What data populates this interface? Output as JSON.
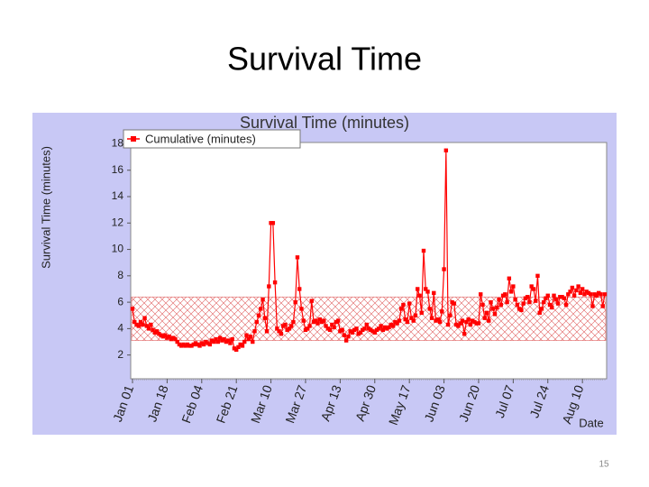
{
  "slide": {
    "title": "Survival Time",
    "page_number": "15"
  },
  "chart_data": {
    "type": "line",
    "title": "Survival Time (minutes)",
    "y_label": "Survival Time (minutes)",
    "x_label": "Date",
    "legend": "upper left",
    "band": {
      "low": 3.1,
      "high": 6.4,
      "color": "#e06060"
    },
    "ylim": [
      0.2,
      18.1
    ],
    "yticks": [
      2,
      4,
      6,
      8,
      10,
      12,
      14,
      16,
      18
    ],
    "categories": [
      "Jan 01",
      null,
      null,
      null,
      null,
      null,
      null,
      null,
      null,
      null,
      null,
      null,
      null,
      null,
      null,
      null,
      null,
      "Jan 18",
      null,
      null,
      null,
      null,
      null,
      null,
      null,
      null,
      null,
      null,
      null,
      null,
      null,
      null,
      null,
      null,
      "Feb 04",
      null,
      null,
      null,
      null,
      null,
      null,
      null,
      null,
      null,
      null,
      null,
      null,
      null,
      null,
      null,
      null,
      "Feb 21",
      null,
      null,
      null,
      null,
      null,
      null,
      null,
      null,
      null,
      null,
      null,
      null,
      null,
      null,
      null,
      null,
      "Mar 10",
      null,
      null,
      null,
      null,
      null,
      null,
      null,
      null,
      null,
      null,
      null,
      null,
      null,
      null,
      null,
      null,
      "Mar 27",
      null,
      null,
      null,
      null,
      null,
      null,
      null,
      null,
      null,
      null,
      null,
      null,
      null,
      null,
      null,
      null,
      "Apr 13",
      null,
      null,
      null,
      null,
      null,
      null,
      null,
      null,
      null,
      null,
      null,
      null,
      null,
      null,
      null,
      null,
      "Apr 30",
      null,
      null,
      null,
      null,
      null,
      null,
      null,
      null,
      null,
      null,
      null,
      null,
      null,
      null,
      null,
      null,
      "May 17",
      null,
      null,
      null,
      null,
      null,
      null,
      null,
      null,
      null,
      null,
      null,
      null,
      null,
      null,
      null,
      null,
      "Jun 03",
      null,
      null,
      null,
      null,
      null,
      null,
      null,
      null,
      null,
      null,
      null,
      null,
      null,
      null,
      null,
      null,
      "Jun 20",
      null,
      null,
      null,
      null,
      null,
      null,
      null,
      null,
      null,
      null,
      null,
      null,
      null,
      null,
      null,
      null,
      "Jul 07",
      null,
      null,
      null,
      null,
      null,
      null,
      null,
      null,
      null,
      null,
      null,
      null,
      null,
      null,
      null,
      null,
      "Jul 24",
      null,
      null,
      null,
      null,
      null,
      null,
      null,
      null,
      null,
      null,
      null,
      null,
      null,
      null,
      null,
      null,
      "Aug 10",
      null,
      null,
      null,
      null,
      null,
      null,
      null,
      null,
      null,
      null,
      null
    ],
    "series": [
      {
        "name": "Cumulative (minutes)",
        "color": "#ff0000",
        "values": [
          5.5,
          4.5,
          4.3,
          4.2,
          4.5,
          4.3,
          4.8,
          4.2,
          4.0,
          4.3,
          3.9,
          3.7,
          3.8,
          3.6,
          3.5,
          3.4,
          3.5,
          3.3,
          3.4,
          3.2,
          3.3,
          3.2,
          3.0,
          2.8,
          2.7,
          2.8,
          2.7,
          2.8,
          2.7,
          2.7,
          2.8,
          2.9,
          2.8,
          2.7,
          2.9,
          2.8,
          3.0,
          2.9,
          2.8,
          3.1,
          3.0,
          3.2,
          3.0,
          3.3,
          3.1,
          3.2,
          3.0,
          3.1,
          2.9,
          3.2,
          2.5,
          2.4,
          2.6,
          2.8,
          2.7,
          3.0,
          3.5,
          3.2,
          3.4,
          3.0,
          3.8,
          4.5,
          5.0,
          5.5,
          6.2,
          4.8,
          3.8,
          7.2,
          12.0,
          12.0,
          7.5,
          4.0,
          3.8,
          3.6,
          4.2,
          4.3,
          3.9,
          4.0,
          4.2,
          4.5,
          6.0,
          9.4,
          7.0,
          5.5,
          4.6,
          3.9,
          4.0,
          4.2,
          6.1,
          4.5,
          4.6,
          4.4,
          4.7,
          4.5,
          4.6,
          4.2,
          4.0,
          3.9,
          4.3,
          4.1,
          4.5,
          4.6,
          3.8,
          3.9,
          3.5,
          3.1,
          3.4,
          3.8,
          3.7,
          3.9,
          4.0,
          3.6,
          3.7,
          3.9,
          4.0,
          4.3,
          4.0,
          3.9,
          3.8,
          3.7,
          3.9,
          4.0,
          4.2,
          3.9,
          4.1,
          4.0,
          4.1,
          4.3,
          4.2,
          4.5,
          4.4,
          4.6,
          5.5,
          5.8,
          4.7,
          4.5,
          5.9,
          4.8,
          4.6,
          5.0,
          7.0,
          6.5,
          5.2,
          9.9,
          7.0,
          6.8,
          5.5,
          4.8,
          6.7,
          4.6,
          4.7,
          4.5,
          5.3,
          8.5,
          17.5,
          4.3,
          5.0,
          6.0,
          5.9,
          4.3,
          4.2,
          4.4,
          4.6,
          3.6,
          4.5,
          4.7,
          4.3,
          4.6,
          4.5,
          4.4,
          4.4,
          6.6,
          5.8,
          4.8,
          5.2,
          4.6,
          6.0,
          5.5,
          5.1,
          5.6,
          6.2,
          5.8,
          6.5,
          6.6,
          6.0,
          7.8,
          6.8,
          7.2,
          6.2,
          5.8,
          5.5,
          5.4,
          5.9,
          6.3,
          6.4,
          6.0,
          7.2,
          7.0,
          6.1,
          8.0,
          5.2,
          5.5,
          6.0,
          6.3,
          6.5,
          5.8,
          5.6,
          6.5,
          6.2,
          5.9,
          6.4,
          6.4,
          6.3,
          5.8,
          6.6,
          6.8,
          7.1,
          6.5,
          6.9,
          7.2,
          6.7,
          7.0,
          6.6,
          6.8,
          6.7,
          6.6,
          5.7,
          6.6,
          6.5,
          6.7,
          6.6,
          5.7,
          6.6
        ]
      }
    ]
  }
}
